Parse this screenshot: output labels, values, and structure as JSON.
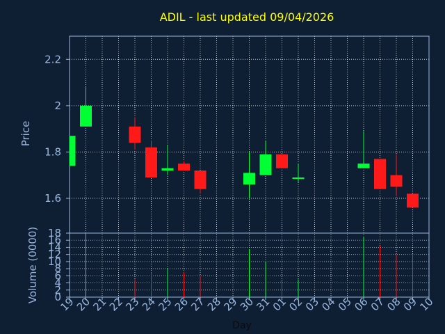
{
  "title": "ADIL - last updated 09/04/2026",
  "colors": {
    "background": "#0f1f33",
    "up": "#00ff33",
    "down": "#ff1a1a",
    "title": "#ffff00",
    "axis": "#9ab8e0",
    "grid": "#ffffff"
  },
  "chart_data": [
    {
      "type": "candlestick",
      "title": "ADIL - last updated 09/04/2026",
      "ylabel": "Price",
      "xlabel": "Day",
      "ylim": [
        1.45,
        2.3
      ],
      "yticks": [
        1.6,
        1.8,
        2,
        2.2
      ],
      "ytick_labels": [
        "1.6",
        "1.8",
        "2",
        "2.2"
      ],
      "grid": true,
      "x_tick_labels": [
        "19",
        "20",
        "21",
        "22",
        "23",
        "24",
        "25",
        "26",
        "27",
        "28",
        "29",
        "30",
        "31",
        "01",
        "02",
        "03",
        "04",
        "05",
        "06",
        "07",
        "08",
        "09",
        "10"
      ],
      "candles": [
        {
          "day": "19",
          "open": 1.74,
          "high": 1.87,
          "low": 1.74,
          "close": 1.87
        },
        {
          "day": "20",
          "open": 1.91,
          "high": 2.08,
          "low": 1.91,
          "close": 2.0
        },
        {
          "day": "23",
          "open": 1.91,
          "high": 1.95,
          "low": 1.81,
          "close": 1.84
        },
        {
          "day": "24",
          "open": 1.82,
          "high": 1.85,
          "low": 1.69,
          "close": 1.69
        },
        {
          "day": "25",
          "open": 1.72,
          "high": 1.83,
          "low": 1.7,
          "close": 1.73
        },
        {
          "day": "26",
          "open": 1.75,
          "high": 1.76,
          "low": 1.72,
          "close": 1.72
        },
        {
          "day": "27",
          "open": 1.72,
          "high": 1.72,
          "low": 1.62,
          "close": 1.64
        },
        {
          "day": "30",
          "open": 1.66,
          "high": 1.8,
          "low": 1.6,
          "close": 1.71
        },
        {
          "day": "31",
          "open": 1.7,
          "high": 1.85,
          "low": 1.7,
          "close": 1.79
        },
        {
          "day": "01",
          "open": 1.79,
          "high": 1.79,
          "low": 1.73,
          "close": 1.73
        },
        {
          "day": "02",
          "open": 1.69,
          "high": 1.75,
          "low": 1.67,
          "close": 1.69
        },
        {
          "day": "06",
          "open": 1.73,
          "high": 1.89,
          "low": 1.73,
          "close": 1.75
        },
        {
          "day": "07",
          "open": 1.77,
          "high": 1.77,
          "low": 1.64,
          "close": 1.64
        },
        {
          "day": "08",
          "open": 1.7,
          "high": 1.79,
          "low": 1.61,
          "close": 1.65
        },
        {
          "day": "09",
          "open": 1.62,
          "high": 1.62,
          "low": 1.56,
          "close": 1.56
        }
      ]
    },
    {
      "type": "bar",
      "ylabel": "Volume (0000)",
      "ylim": [
        0,
        18
      ],
      "yticks": [
        0,
        2,
        4,
        6,
        8,
        10,
        12,
        14,
        16,
        18
      ],
      "ytick_labels": [
        "0",
        "2",
        "4",
        "6",
        "8",
        "10",
        "12",
        "14",
        "16",
        "18"
      ],
      "volumes": [
        {
          "day": "20",
          "value": 18,
          "dir": "up"
        },
        {
          "day": "23",
          "value": 5,
          "dir": "down"
        },
        {
          "day": "24",
          "value": 7,
          "dir": "down"
        },
        {
          "day": "25",
          "value": 8,
          "dir": "up"
        },
        {
          "day": "26",
          "value": 7,
          "dir": "down"
        },
        {
          "day": "27",
          "value": 6,
          "dir": "down"
        },
        {
          "day": "30",
          "value": 13.5,
          "dir": "up"
        },
        {
          "day": "31",
          "value": 10,
          "dir": "up"
        },
        {
          "day": "01",
          "value": 4.5,
          "dir": "down"
        },
        {
          "day": "02",
          "value": 5,
          "dir": "up"
        },
        {
          "day": "06",
          "value": 17,
          "dir": "up"
        },
        {
          "day": "07",
          "value": 14.5,
          "dir": "down"
        },
        {
          "day": "08",
          "value": 12,
          "dir": "down"
        },
        {
          "day": "09",
          "value": 12,
          "dir": "down"
        }
      ]
    }
  ]
}
